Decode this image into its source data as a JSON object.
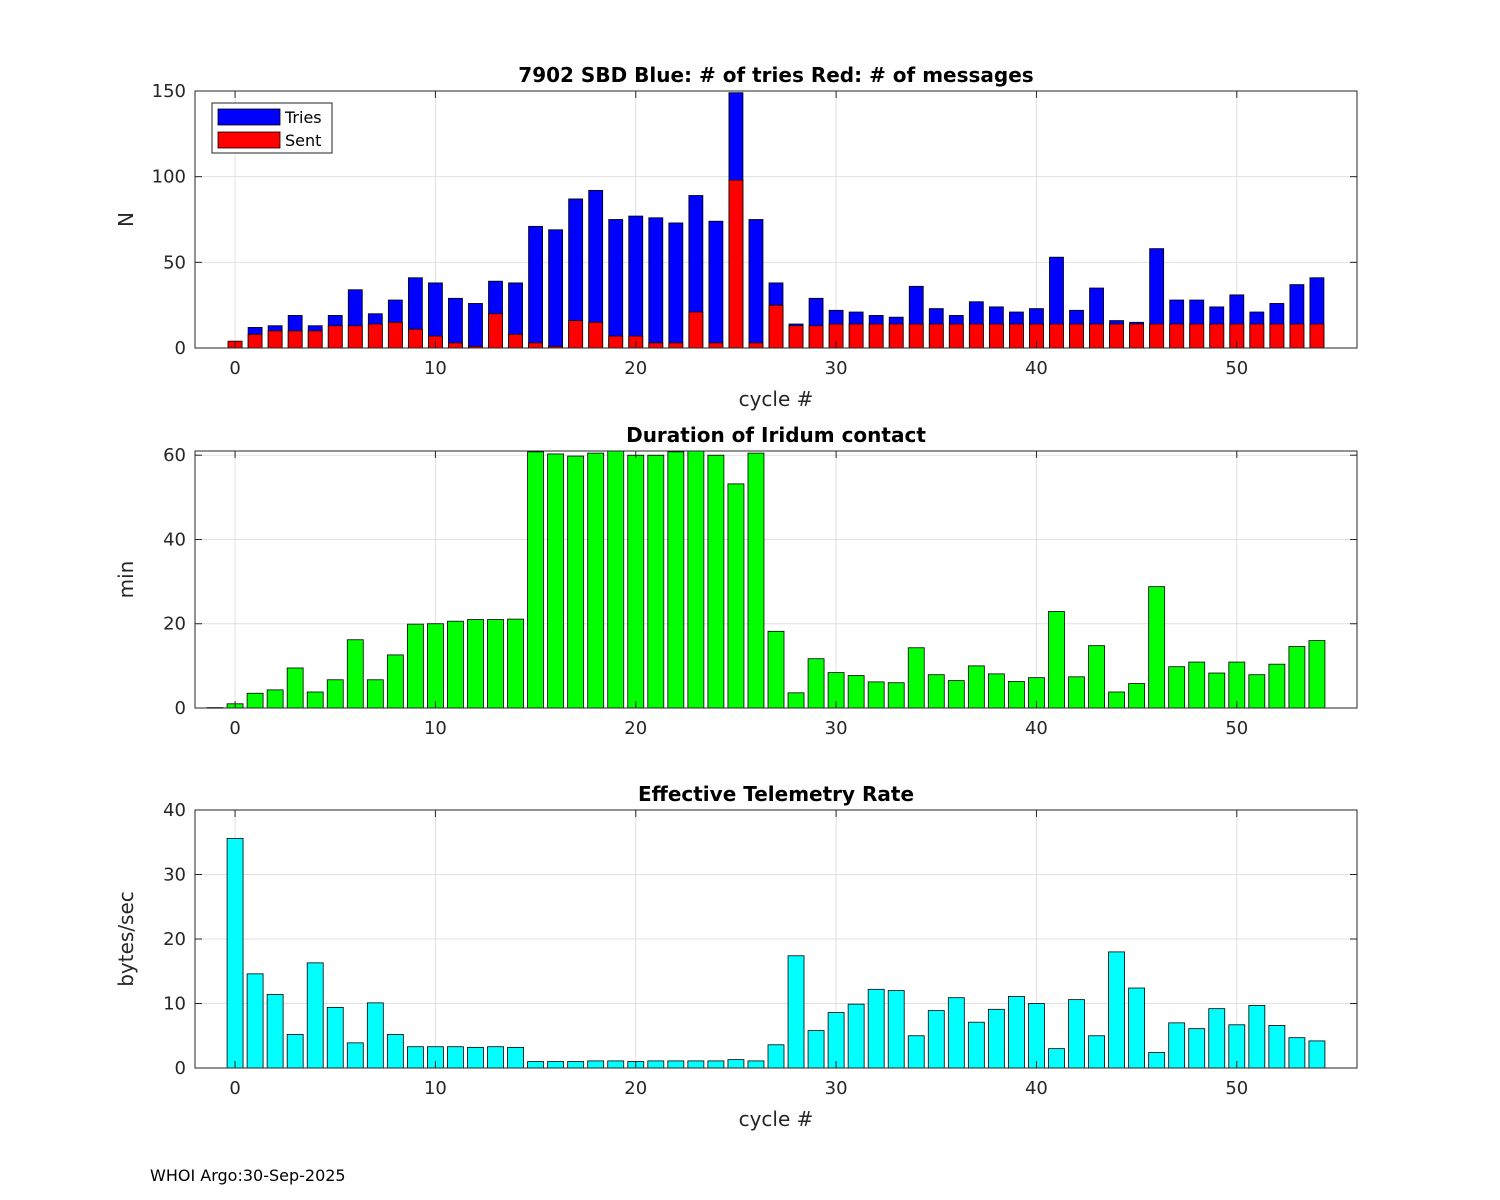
{
  "footer": "WHOI Argo:30-Sep-2025",
  "colors": {
    "tries": "#0000ff",
    "sent": "#ff0000",
    "duration": "#00ff00",
    "rate": "#00ffff",
    "grid": "#e0e0e0",
    "axis": "#262626"
  },
  "chart_data": [
    {
      "type": "bar",
      "title": "7902 SBD  Blue: # of tries   Red: # of messages",
      "xlabel": "cycle #",
      "ylabel": "N",
      "xlim": [
        -2,
        56
      ],
      "ylim": [
        0,
        150
      ],
      "xticks": [
        0,
        10,
        20,
        30,
        40,
        50
      ],
      "yticks": [
        0,
        50,
        100,
        150
      ],
      "grid": true,
      "legend": {
        "location": "top-left",
        "entries": [
          "Tries",
          "Sent"
        ]
      },
      "x": [
        0,
        1,
        2,
        3,
        4,
        5,
        6,
        7,
        8,
        9,
        10,
        11,
        12,
        13,
        14,
        15,
        16,
        17,
        18,
        19,
        20,
        21,
        22,
        23,
        24,
        25,
        26,
        27,
        28,
        29,
        30,
        31,
        32,
        33,
        34,
        35,
        36,
        37,
        38,
        39,
        40,
        41,
        42,
        43,
        44,
        45,
        46,
        47,
        48,
        49,
        50,
        51,
        52,
        53,
        54
      ],
      "series": [
        {
          "name": "Tries",
          "values": [
            3,
            12,
            13,
            19,
            13,
            19,
            34,
            20,
            28,
            41,
            38,
            29,
            26,
            39,
            38,
            71,
            69,
            87,
            92,
            75,
            77,
            76,
            73,
            89,
            74,
            149,
            75,
            38,
            14,
            29,
            22,
            21,
            19,
            18,
            36,
            23,
            19,
            27,
            24,
            21,
            23,
            53,
            22,
            35,
            16,
            15,
            58,
            28,
            28,
            24,
            31,
            21,
            26,
            37,
            41
          ]
        },
        {
          "name": "Sent",
          "values": [
            4,
            8,
            10,
            10,
            10,
            13,
            13,
            14,
            15,
            11,
            7,
            3,
            1,
            20,
            8,
            3,
            1,
            16,
            15,
            7,
            7,
            3,
            3,
            21,
            3,
            98,
            3,
            25,
            13,
            13,
            14,
            14,
            14,
            14,
            14,
            14,
            14,
            14,
            14,
            14,
            14,
            14,
            14,
            14,
            14,
            14,
            14,
            14,
            14,
            14,
            14,
            14,
            14,
            14,
            14
          ]
        }
      ]
    },
    {
      "type": "bar",
      "title": "Duration of Iridum contact",
      "xlabel": "",
      "ylabel": "min",
      "xlim": [
        -2,
        56
      ],
      "ylim": [
        0,
        61
      ],
      "xticks": [
        0,
        10,
        20,
        30,
        40,
        50
      ],
      "yticks": [
        0,
        20,
        40,
        60
      ],
      "grid": true,
      "x": [
        -1,
        0,
        1,
        2,
        3,
        4,
        5,
        6,
        7,
        8,
        9,
        10,
        11,
        12,
        13,
        14,
        15,
        16,
        17,
        18,
        19,
        20,
        21,
        22,
        23,
        24,
        25,
        26,
        27,
        28,
        29,
        30,
        31,
        32,
        33,
        34,
        35,
        36,
        37,
        38,
        39,
        40,
        41,
        42,
        43,
        44,
        45,
        46,
        47,
        48,
        49,
        50,
        51,
        52,
        53,
        54
      ],
      "series": [
        {
          "name": "Duration",
          "values": [
            0.1,
            1,
            3.5,
            4.3,
            9.5,
            3.8,
            6.7,
            16.2,
            6.7,
            12.6,
            19.9,
            20,
            20.6,
            21,
            21,
            21.1,
            60.8,
            60.3,
            59.8,
            60.5,
            61,
            60,
            60,
            60.8,
            61,
            60,
            53.2,
            60.5,
            18.2,
            3.6,
            11.7,
            8.4,
            7.7,
            6.2,
            6,
            14.3,
            7.9,
            6.5,
            10,
            8.1,
            6.3,
            7.2,
            22.9,
            7.4,
            14.8,
            3.8,
            5.8,
            28.8,
            9.8,
            10.9,
            8.3,
            10.9,
            7.9,
            10.4,
            14.6,
            16
          ]
        }
      ]
    },
    {
      "type": "bar",
      "title": "Effective Telemetry Rate",
      "xlabel": "cycle #",
      "ylabel": "bytes/sec",
      "xlim": [
        -2,
        56
      ],
      "ylim": [
        0,
        40
      ],
      "xticks": [
        0,
        10,
        20,
        30,
        40,
        50
      ],
      "yticks": [
        0,
        10,
        20,
        30,
        40
      ],
      "grid": true,
      "x": [
        0,
        1,
        2,
        3,
        4,
        5,
        6,
        7,
        8,
        9,
        10,
        11,
        12,
        13,
        14,
        15,
        16,
        17,
        18,
        19,
        20,
        21,
        22,
        23,
        24,
        25,
        26,
        27,
        28,
        29,
        30,
        31,
        32,
        33,
        34,
        35,
        36,
        37,
        38,
        39,
        40,
        41,
        42,
        43,
        44,
        45,
        46,
        47,
        48,
        49,
        50,
        51,
        52,
        53,
        54
      ],
      "series": [
        {
          "name": "Rate",
          "values": [
            35.6,
            14.6,
            11.4,
            5.2,
            16.3,
            9.4,
            3.9,
            10.1,
            5.2,
            3.3,
            3.3,
            3.3,
            3.2,
            3.3,
            3.2,
            1,
            1,
            1,
            1.1,
            1.1,
            1,
            1.1,
            1.1,
            1.1,
            1.1,
            1.3,
            1.1,
            3.6,
            17.4,
            5.8,
            8.6,
            9.9,
            12.2,
            12,
            5,
            8.9,
            10.9,
            7.1,
            9.1,
            11.1,
            10,
            3,
            10.6,
            5,
            18,
            12.4,
            2.4,
            7,
            6.1,
            9.2,
            6.7,
            9.7,
            6.6,
            4.7,
            4.2
          ]
        }
      ]
    }
  ]
}
